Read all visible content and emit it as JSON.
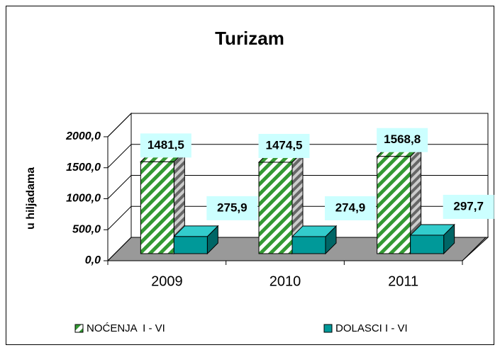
{
  "chart_data": {
    "type": "bar3d",
    "title": "Turizam",
    "y_label": "u hiljadama",
    "categories": [
      "2009",
      "2010",
      "2011"
    ],
    "series": [
      {
        "name": "NOĆENJA  I - VI",
        "color": "#339933",
        "values": [
          1481.5,
          1474.5,
          1568.8
        ],
        "value_labels": [
          "1481,5",
          "1474,5",
          "1568,8"
        ]
      },
      {
        "name": "DOLASCI I - VI",
        "color": "#009999",
        "values": [
          275.9,
          274.9,
          297.7
        ],
        "value_labels": [
          "275,9",
          "274,9",
          "297,7"
        ]
      }
    ],
    "ylim": [
      0,
      2000
    ],
    "yticks": [
      {
        "value": 0,
        "label": "0,0"
      },
      {
        "value": 500,
        "label": "500,0"
      },
      {
        "value": 1000,
        "label": "1000,0"
      },
      {
        "value": 1500,
        "label": "1500,0"
      },
      {
        "value": 2000,
        "label": "2000,0"
      }
    ],
    "grid": true,
    "legend": "bottom"
  }
}
